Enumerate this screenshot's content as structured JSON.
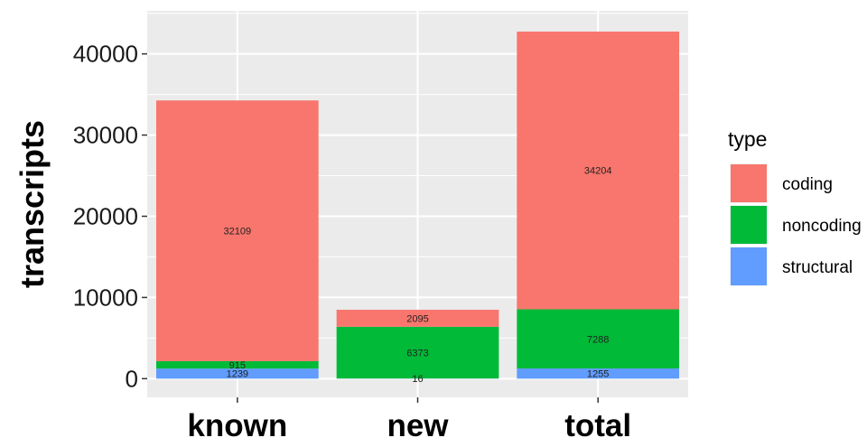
{
  "chart_data": {
    "type": "bar",
    "stacked": true,
    "categories": [
      "known",
      "new",
      "total"
    ],
    "series": [
      {
        "name": "structural",
        "color": "#619CFF",
        "values": [
          1239,
          16,
          1255
        ]
      },
      {
        "name": "noncoding",
        "color": "#00BA38",
        "values": [
          915,
          6373,
          7288
        ]
      },
      {
        "name": "coding",
        "color": "#F8766D",
        "values": [
          32109,
          2095,
          34204
        ]
      }
    ],
    "legend_order": [
      "coding",
      "noncoding",
      "structural"
    ],
    "title": "",
    "xlabel": "",
    "ylabel": "transcripts",
    "ylim": [
      -2300,
      45300
    ],
    "yticks": [
      0,
      10000,
      20000,
      30000,
      40000
    ],
    "legend": {
      "title": "type",
      "position": "right"
    },
    "grid": true
  }
}
